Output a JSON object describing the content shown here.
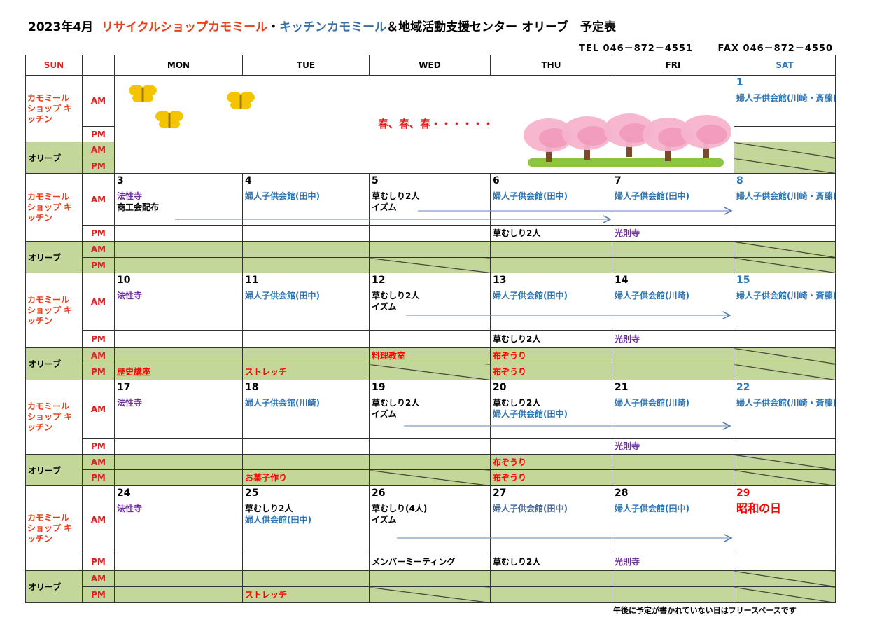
{
  "header": {
    "title_prefix": "2023年4月",
    "title_shop": "リサイクルショップカモミール",
    "title_dot": "・",
    "title_kitchen": "キッチンカモミール",
    "title_rest": "＆地域活動支援センター オリーブ　予定表",
    "tel": "TEL 046－872－4551",
    "fax": "FAX 046－872－4550"
  },
  "columns": [
    "SUN",
    "",
    "MON",
    "TUE",
    "WED",
    "THU",
    "FRI",
    "SAT"
  ],
  "labels": {
    "kamomile": "カモミール ショップ キッチン",
    "olive": "オリーブ",
    "am": "AM",
    "pm": "PM"
  },
  "colors": {
    "purple": "#7030a0",
    "blue": "#2e75b6",
    "muted_blue": "#4a6a9a",
    "black": "#000000",
    "red": "#ff0000",
    "green": "#c4d79b",
    "saturday": "#2e75b6"
  },
  "spring_text": "春、春、春・・・・・・",
  "weeks": [
    {
      "spring": true,
      "days": [
        {
          "date": "1",
          "date_color": "blue",
          "am": [
            {
              "t": "婦人子供会館(川崎・斎藤)",
              "c": "blue"
            }
          ],
          "pm": [],
          "oam": null,
          "opm": null,
          "oam_diag": true,
          "opm_diag": true
        }
      ]
    },
    {
      "days": [
        {
          "date": "3",
          "am": [
            {
              "t": "法性寺",
              "c": "purple"
            },
            {
              "t": "商工会配布",
              "c": "black"
            }
          ],
          "pm": []
        },
        {
          "date": "4",
          "am": [
            {
              "t": "婦人子供会館(田中)",
              "c": "blue"
            }
          ],
          "pm": []
        },
        {
          "date": "5",
          "am": [
            {
              "t": "草むしり2人",
              "c": "black"
            },
            {
              "t": "イズム",
              "c": "black"
            }
          ],
          "pm": [],
          "opm_diag": true
        },
        {
          "date": "6",
          "am": [
            {
              "t": "婦人子供会館(田中)",
              "c": "blue"
            }
          ],
          "pm": [
            {
              "t": "草むしり2人",
              "c": "black"
            }
          ]
        },
        {
          "date": "7",
          "am": [
            {
              "t": "婦人子供会館(田中)",
              "c": "blue"
            }
          ],
          "pm": [
            {
              "t": "光則寺",
              "c": "purple"
            }
          ]
        },
        {
          "date": "8",
          "date_color": "blue",
          "am": [
            {
              "t": "婦人子供会館(川崎・斎藤)",
              "c": "blue"
            }
          ],
          "pm": [],
          "oam_diag": true,
          "opm_diag": true
        }
      ]
    },
    {
      "days": [
        {
          "date": "10",
          "am": [
            {
              "t": "法性寺",
              "c": "purple"
            }
          ],
          "pm": [],
          "opm": {
            "t": "歴史講座",
            "c": "red"
          }
        },
        {
          "date": "11",
          "am": [
            {
              "t": "婦人子供会館(田中)",
              "c": "blue"
            }
          ],
          "pm": [],
          "opm": {
            "t": "ストレッチ",
            "c": "red"
          }
        },
        {
          "date": "12",
          "am": [
            {
              "t": "草むしり2人",
              "c": "black"
            },
            {
              "t": "イズム",
              "c": "black"
            }
          ],
          "pm": [],
          "oam": {
            "t": "料理教室",
            "c": "red"
          },
          "opm_diag": true
        },
        {
          "date": "13",
          "am": [
            {
              "t": "婦人子供会館(田中)",
              "c": "blue"
            }
          ],
          "pm": [
            {
              "t": "草むしり2人",
              "c": "black"
            }
          ],
          "oam": {
            "t": "布ぞうり",
            "c": "red"
          },
          "opm": {
            "t": "布ぞうり",
            "c": "red"
          }
        },
        {
          "date": "14",
          "am": [
            {
              "t": "婦人子供会館(川崎)",
              "c": "blue"
            }
          ],
          "pm": [
            {
              "t": "光則寺",
              "c": "purple"
            }
          ]
        },
        {
          "date": "15",
          "date_color": "blue",
          "am": [
            {
              "t": "婦人子供会館(川崎・斎藤)",
              "c": "blue"
            }
          ],
          "pm": [],
          "oam_diag": true,
          "opm_diag": true
        }
      ]
    },
    {
      "days": [
        {
          "date": "17",
          "am": [
            {
              "t": "法性寺",
              "c": "purple"
            }
          ],
          "pm": []
        },
        {
          "date": "18",
          "am": [
            {
              "t": "婦人子供会館(川崎)",
              "c": "blue"
            }
          ],
          "pm": [],
          "opm": {
            "t": "お菓子作り",
            "c": "red"
          }
        },
        {
          "date": "19",
          "am": [
            {
              "t": "草むしり2人",
              "c": "black"
            },
            {
              "t": "イズム",
              "c": "black"
            }
          ],
          "pm": [],
          "opm_diag": true
        },
        {
          "date": "20",
          "am": [
            {
              "t": "草むしり2人",
              "c": "black"
            },
            {
              "t": "婦人子供会館(田中)",
              "c": "blue"
            }
          ],
          "pm": [],
          "oam": {
            "t": "布ぞうり",
            "c": "red"
          },
          "opm": {
            "t": "布ぞうり",
            "c": "red"
          }
        },
        {
          "date": "21",
          "am": [
            {
              "t": "婦人子供会館(川崎)",
              "c": "blue"
            }
          ],
          "pm": [
            {
              "t": "光則寺",
              "c": "purple"
            }
          ]
        },
        {
          "date": "22",
          "date_color": "blue",
          "am": [
            {
              "t": "婦人子供会館(川崎・斎藤)",
              "c": "blue"
            }
          ],
          "pm": [],
          "oam_diag": true,
          "opm_diag": true
        }
      ]
    },
    {
      "days": [
        {
          "date": "24",
          "am": [
            {
              "t": "法性寺",
              "c": "purple"
            }
          ],
          "pm": []
        },
        {
          "date": "25",
          "am": [
            {
              "t": "草むしり2人",
              "c": "black"
            },
            {
              "t": "婦人供会館(田中)",
              "c": "blue"
            }
          ],
          "pm": [],
          "opm": {
            "t": "ストレッチ",
            "c": "red"
          }
        },
        {
          "date": "26",
          "am": [
            {
              "t": "草むしり(4人)",
              "c": "black"
            },
            {
              "t": "イズム",
              "c": "black"
            }
          ],
          "pm": [
            {
              "t": "メンバーミーティング",
              "c": "black"
            }
          ],
          "opm_diag": true
        },
        {
          "date": "27",
          "am": [
            {
              "t": "婦人子供会館(田中)",
              "c": "muted_blue"
            }
          ],
          "pm": [
            {
              "t": "草むしり2人",
              "c": "black"
            }
          ]
        },
        {
          "date": "28",
          "am": [
            {
              "t": "婦人子供会館(田中)",
              "c": "blue"
            }
          ],
          "pm": [
            {
              "t": "光則寺",
              "c": "purple"
            }
          ]
        },
        {
          "date": "29",
          "date_color": "red",
          "am": [
            {
              "t": "昭和の日",
              "c": "red",
              "big": true
            }
          ],
          "pm": [],
          "oam_diag": true,
          "opm_diag": true
        }
      ]
    }
  ],
  "footer_note": "午後に予定が書かれていない日はフリースペースです"
}
